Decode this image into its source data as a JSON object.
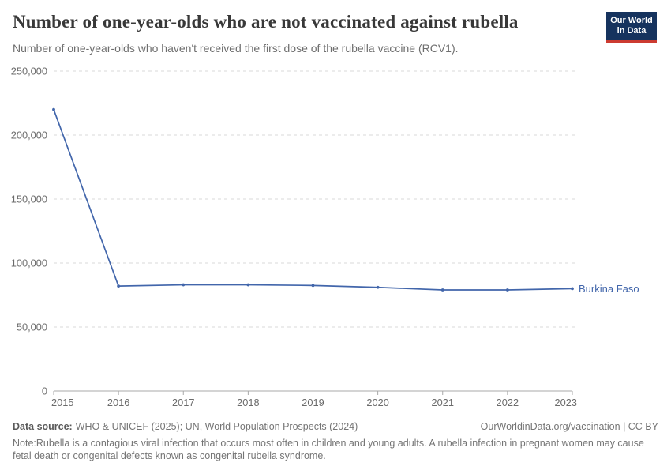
{
  "header": {
    "title": "Number of one-year-olds who are not vaccinated against rubella",
    "subtitle": "Number of one-year-olds who haven't received the first dose of the rubella vaccine (RCV1).",
    "logo": {
      "line1": "Our World",
      "line2": "in Data",
      "bg_color": "#16335e",
      "accent_color": "#cc3b31"
    }
  },
  "chart_data": {
    "type": "line",
    "title": "Number of one-year-olds who are not vaccinated against rubella",
    "x": [
      2015,
      2016,
      2017,
      2018,
      2019,
      2020,
      2021,
      2022,
      2023
    ],
    "series": [
      {
        "name": "Burkina Faso",
        "values": [
          220000,
          82000,
          83000,
          83000,
          82500,
          81000,
          79000,
          79000,
          80000
        ],
        "color": "#4266ab"
      }
    ],
    "xlabel": "",
    "ylabel": "",
    "ylim": [
      0,
      250000
    ],
    "yticks": [
      {
        "value": 0,
        "label": "0"
      },
      {
        "value": 50000,
        "label": "50,000"
      },
      {
        "value": 100000,
        "label": "100,000"
      },
      {
        "value": 150000,
        "label": "150,000"
      },
      {
        "value": 200000,
        "label": "200,000"
      },
      {
        "value": 250000,
        "label": "250,000"
      }
    ],
    "grid": "horizontal-dashed",
    "legend_position": "end-of-line-label",
    "entity_label": "Burkina Faso"
  },
  "footer": {
    "source_label": "Data source:",
    "source_text": "WHO & UNICEF (2025); UN, World Population Prospects (2024)",
    "link_text": "OurWorldinData.org/vaccination | CC BY",
    "note_label": "Note:",
    "note_text": "Rubella is a contagious viral infection that occurs most often in children and young adults. A rubella infection in pregnant women may cause fetal death or congenital defects known as congenital rubella syndrome."
  }
}
